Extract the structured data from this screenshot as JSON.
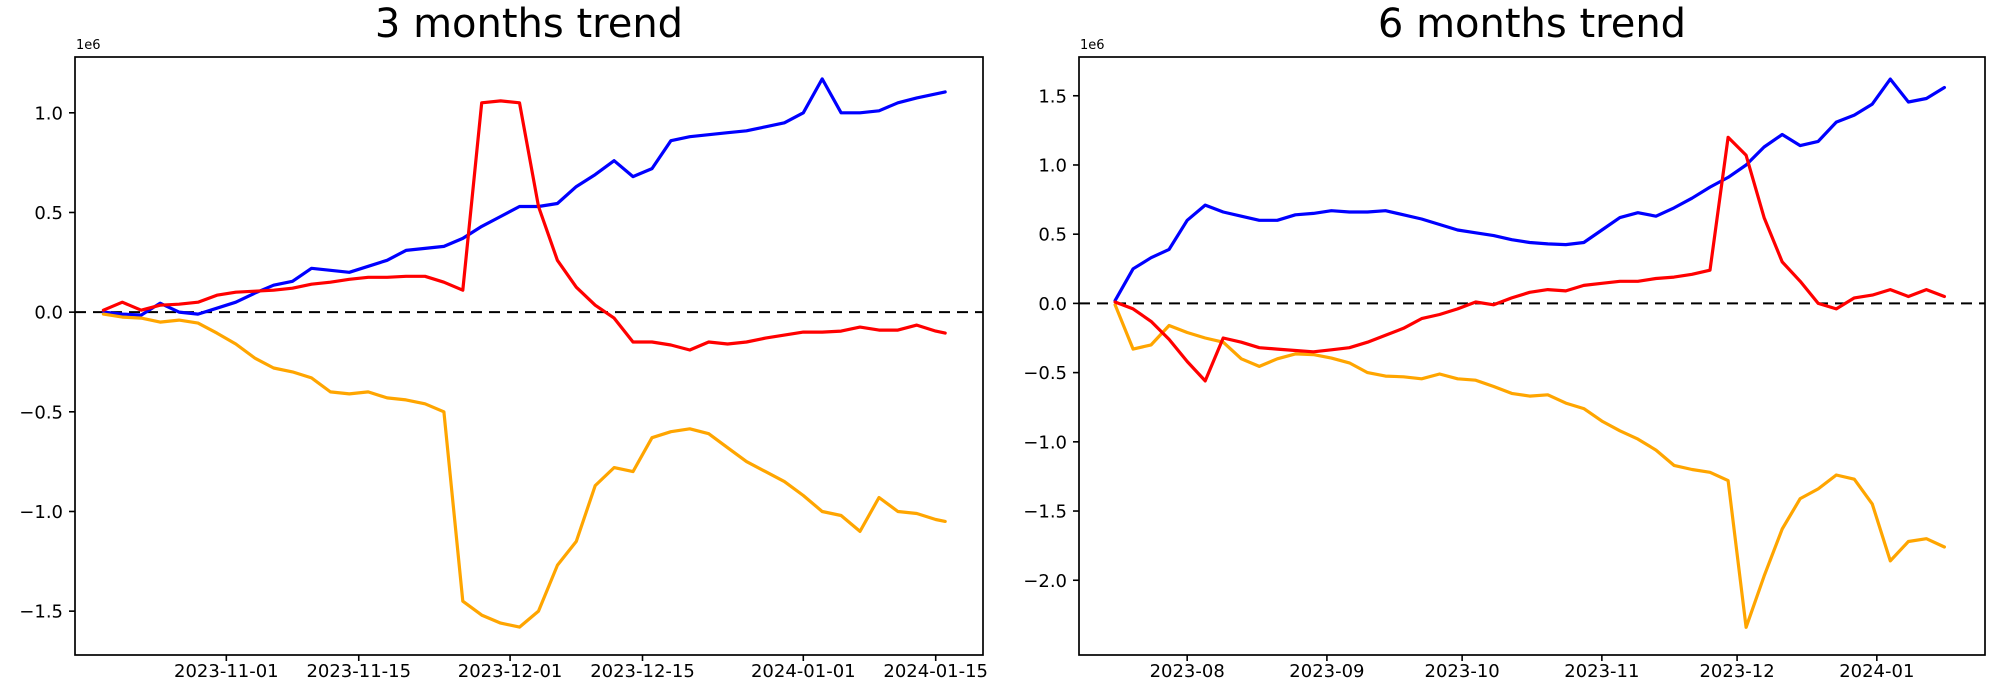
{
  "figure": {
    "background": "#ffffff"
  },
  "chart_data": [
    {
      "type": "line",
      "title": "3 months trend",
      "offset_label": "1e6",
      "xlabel": "",
      "ylabel": "",
      "grid": false,
      "legend": null,
      "zero_line": {
        "style": "dashed",
        "color": "#000000"
      },
      "ylim": [
        -1.72,
        1.28
      ],
      "xlim": [
        "2023-10-16",
        "2024-01-20"
      ],
      "y_tick_values": [
        1.0,
        0.5,
        0.0,
        -0.5,
        -1.0,
        -1.5
      ],
      "y_tick_labels": [
        "1.0",
        "0.5",
        "0.0",
        "−0.5",
        "−1.0",
        "−1.5"
      ],
      "x_tick_dates": [
        "2023-11-01",
        "2023-11-15",
        "2023-12-01",
        "2023-12-15",
        "2024-01-01",
        "2024-01-15"
      ],
      "x_tick_labels": [
        "2023-11-01",
        "2023-11-15",
        "2023-12-01",
        "2023-12-15",
        "2024-01-01",
        "2024-01-15"
      ],
      "x": [
        "2023-10-19",
        "2023-10-21",
        "2023-10-23",
        "2023-10-25",
        "2023-10-27",
        "2023-10-29",
        "2023-10-31",
        "2023-11-02",
        "2023-11-04",
        "2023-11-06",
        "2023-11-08",
        "2023-11-10",
        "2023-11-12",
        "2023-11-14",
        "2023-11-16",
        "2023-11-18",
        "2023-11-20",
        "2023-11-22",
        "2023-11-24",
        "2023-11-26",
        "2023-11-28",
        "2023-11-30",
        "2023-12-02",
        "2023-12-04",
        "2023-12-06",
        "2023-12-08",
        "2023-12-10",
        "2023-12-12",
        "2023-12-14",
        "2023-12-16",
        "2023-12-18",
        "2023-12-20",
        "2023-12-22",
        "2023-12-24",
        "2023-12-26",
        "2023-12-28",
        "2023-12-30",
        "2024-01-01",
        "2024-01-03",
        "2024-01-05",
        "2024-01-07",
        "2024-01-09",
        "2024-01-11",
        "2024-01-13",
        "2024-01-15",
        "2024-01-16"
      ],
      "series": [
        {
          "name": "blue-series",
          "color": "#0000ff",
          "values": [
            0.0,
            -0.01,
            -0.015,
            0.045,
            0.0,
            -0.01,
            0.02,
            0.05,
            0.095,
            0.135,
            0.155,
            0.22,
            0.21,
            0.2,
            0.23,
            0.26,
            0.31,
            0.32,
            0.33,
            0.37,
            0.43,
            0.48,
            0.53,
            0.53,
            0.545,
            0.63,
            0.69,
            0.76,
            0.68,
            0.72,
            0.86,
            0.88,
            0.89,
            0.9,
            0.91,
            0.93,
            0.95,
            1.0,
            1.17,
            1.0,
            1.0,
            1.01,
            1.05,
            1.075,
            1.095,
            1.105
          ]
        },
        {
          "name": "orange-series",
          "color": "#ffa500",
          "values": [
            -0.01,
            -0.025,
            -0.03,
            -0.05,
            -0.04,
            -0.055,
            -0.105,
            -0.16,
            -0.23,
            -0.28,
            -0.3,
            -0.33,
            -0.4,
            -0.41,
            -0.4,
            -0.43,
            -0.44,
            -0.46,
            -0.5,
            -1.45,
            -1.52,
            -1.56,
            -1.58,
            -1.5,
            -1.27,
            -1.15,
            -0.87,
            -0.78,
            -0.8,
            -0.63,
            -0.6,
            -0.585,
            -0.61,
            -0.68,
            -0.75,
            -0.8,
            -0.85,
            -0.92,
            -1.0,
            -1.02,
            -1.1,
            -0.93,
            -1.0,
            -1.01,
            -1.04,
            -1.05
          ]
        },
        {
          "name": "red-series",
          "color": "#ff0000",
          "values": [
            0.01,
            0.05,
            0.01,
            0.035,
            0.04,
            0.05,
            0.085,
            0.1,
            0.105,
            0.11,
            0.12,
            0.14,
            0.15,
            0.165,
            0.175,
            0.175,
            0.18,
            0.18,
            0.15,
            0.11,
            1.05,
            1.06,
            1.05,
            0.53,
            0.26,
            0.125,
            0.035,
            -0.03,
            -0.15,
            -0.15,
            -0.165,
            -0.19,
            -0.15,
            -0.16,
            -0.15,
            -0.13,
            -0.115,
            -0.1,
            -0.1,
            -0.095,
            -0.075,
            -0.09,
            -0.09,
            -0.065,
            -0.095,
            -0.105
          ]
        }
      ]
    },
    {
      "type": "line",
      "title": "6 months trend",
      "offset_label": "1e6",
      "xlabel": "",
      "ylabel": "",
      "grid": false,
      "legend": null,
      "zero_line": {
        "style": "dashed",
        "color": "#000000"
      },
      "ylim": [
        -2.54,
        1.78
      ],
      "xlim": [
        "2023-07-08",
        "2024-01-25"
      ],
      "y_tick_values": [
        1.5,
        1.0,
        0.5,
        0.0,
        -0.5,
        -1.0,
        -1.5,
        -2.0
      ],
      "y_tick_labels": [
        "1.5",
        "1.0",
        "0.5",
        "0.0",
        "−0.5",
        "−1.0",
        "−1.5",
        "−2.0"
      ],
      "x_tick_dates": [
        "2023-08-01",
        "2023-09-01",
        "2023-10-01",
        "2023-11-01",
        "2023-12-01",
        "2024-01-01"
      ],
      "x_tick_labels": [
        "2023-08",
        "2023-09",
        "2023-10",
        "2023-11",
        "2023-12",
        "2024-01"
      ],
      "x": [
        "2023-07-16",
        "2023-07-20",
        "2023-07-24",
        "2023-07-28",
        "2023-08-01",
        "2023-08-05",
        "2023-08-09",
        "2023-08-13",
        "2023-08-17",
        "2023-08-21",
        "2023-08-25",
        "2023-08-29",
        "2023-09-02",
        "2023-09-06",
        "2023-09-10",
        "2023-09-14",
        "2023-09-18",
        "2023-09-22",
        "2023-09-26",
        "2023-09-30",
        "2023-10-04",
        "2023-10-08",
        "2023-10-12",
        "2023-10-16",
        "2023-10-20",
        "2023-10-24",
        "2023-10-28",
        "2023-11-01",
        "2023-11-05",
        "2023-11-09",
        "2023-11-13",
        "2023-11-17",
        "2023-11-21",
        "2023-11-25",
        "2023-11-29",
        "2023-12-03",
        "2023-12-07",
        "2023-12-11",
        "2023-12-15",
        "2023-12-19",
        "2023-12-23",
        "2023-12-27",
        "2023-12-31",
        "2024-01-04",
        "2024-01-08",
        "2024-01-12",
        "2024-01-16"
      ],
      "series": [
        {
          "name": "blue-series",
          "color": "#0000ff",
          "values": [
            0.02,
            0.25,
            0.33,
            0.39,
            0.6,
            0.71,
            0.66,
            0.63,
            0.6,
            0.6,
            0.64,
            0.65,
            0.67,
            0.66,
            0.66,
            0.67,
            0.64,
            0.61,
            0.57,
            0.53,
            0.51,
            0.49,
            0.46,
            0.44,
            0.43,
            0.425,
            0.44,
            0.53,
            0.62,
            0.655,
            0.63,
            0.69,
            0.76,
            0.84,
            0.91,
            1.0,
            1.13,
            1.22,
            1.14,
            1.17,
            1.31,
            1.36,
            1.44,
            1.62,
            1.455,
            1.48,
            1.56
          ]
        },
        {
          "name": "orange-series",
          "color": "#ffa500",
          "values": [
            -0.01,
            -0.33,
            -0.3,
            -0.16,
            -0.21,
            -0.25,
            -0.28,
            -0.4,
            -0.455,
            -0.4,
            -0.365,
            -0.37,
            -0.395,
            -0.43,
            -0.5,
            -0.525,
            -0.53,
            -0.545,
            -0.51,
            -0.545,
            -0.555,
            -0.6,
            -0.65,
            -0.67,
            -0.66,
            -0.72,
            -0.76,
            -0.85,
            -0.92,
            -0.98,
            -1.06,
            -1.17,
            -1.2,
            -1.22,
            -1.28,
            -2.34,
            -1.97,
            -1.63,
            -1.41,
            -1.34,
            -1.24,
            -1.27,
            -1.45,
            -1.86,
            -1.72,
            -1.7,
            -1.76
          ]
        },
        {
          "name": "red-series",
          "color": "#ff0000",
          "values": [
            0.01,
            -0.04,
            -0.13,
            -0.26,
            -0.42,
            -0.56,
            -0.25,
            -0.28,
            -0.32,
            -0.33,
            -0.34,
            -0.35,
            -0.335,
            -0.32,
            -0.28,
            -0.23,
            -0.18,
            -0.11,
            -0.08,
            -0.04,
            0.01,
            -0.01,
            0.04,
            0.08,
            0.1,
            0.09,
            0.13,
            0.145,
            0.16,
            0.16,
            0.18,
            0.19,
            0.21,
            0.24,
            1.2,
            1.07,
            0.62,
            0.3,
            0.16,
            0.0,
            -0.04,
            0.04,
            0.06,
            0.1,
            0.05,
            0.1,
            0.05
          ]
        }
      ]
    }
  ]
}
